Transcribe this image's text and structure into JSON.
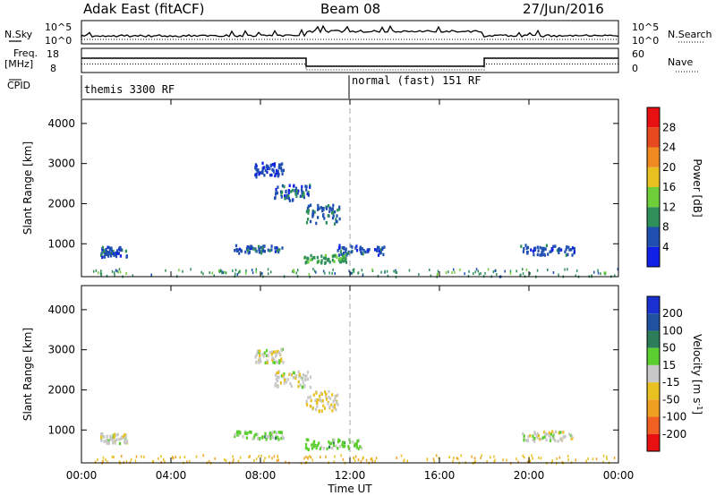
{
  "header": {
    "station": "Adak East (fitACF)",
    "beam": "Beam 08",
    "date": "27/Jun/2016"
  },
  "strip_labels": {
    "nsky": "N.Sky",
    "nsky_ticks": [
      "10^5",
      "10^0"
    ],
    "nsearch": "N.Search",
    "nsearch_ticks": [
      "10^5",
      "10^0"
    ],
    "freq_line1": "Freq.",
    "freq_line2": "[MHz]",
    "freq_ticks": [
      "18",
      "8"
    ],
    "nave": "Nave",
    "nave_ticks": [
      "60",
      "0"
    ],
    "cpid": "CPID",
    "cpid_modes": [
      "themis 3300 RF",
      "normal (fast) 151 RF"
    ]
  },
  "axes": {
    "ylabel": "Slant Range [km]",
    "xlabel": "Time UT",
    "y_ticks": [
      "1000",
      "2000",
      "3000",
      "4000"
    ],
    "x_ticks": [
      "00:00",
      "04:00",
      "08:00",
      "12:00",
      "16:00",
      "20:00",
      "00:00"
    ]
  },
  "colorbars": {
    "power": {
      "label": "Power [dB]",
      "ticks": [
        "4",
        "8",
        "12",
        "16",
        "20",
        "24",
        "28"
      ],
      "colors": [
        "#1020e6",
        "#1f4fb0",
        "#2f8f5a",
        "#6fcf3a",
        "#e8c020",
        "#f08a20",
        "#e84a20",
        "#e81010"
      ]
    },
    "velocity": {
      "label": "Velocity [m s",
      "label_exp": "-1",
      "label_end": "]",
      "ticks": [
        "200",
        "100",
        "50",
        "15",
        "-15",
        "-50",
        "-100",
        "-200"
      ],
      "colors": [
        "#1a30d0",
        "#2050a0",
        "#2e7d5a",
        "#5ccf30",
        "#c8c8c8",
        "#e8c020",
        "#f0a020",
        "#f06020",
        "#e81010"
      ]
    }
  },
  "chart_data": [
    {
      "type": "scatter",
      "title": "Power",
      "x_unit": "hours UT",
      "ylabel": "Slant Range [km]",
      "xlim": [
        0,
        24
      ],
      "ylim": [
        180,
        4600
      ],
      "clusters": [
        {
          "x": [
            0.8,
            2.0
          ],
          "y": [
            700,
            950
          ],
          "value_dB": 6
        },
        {
          "x": [
            7.7,
            9.0
          ],
          "y": [
            2700,
            3050
          ],
          "value_dB": 5
        },
        {
          "x": [
            8.6,
            10.2
          ],
          "y": [
            2100,
            2500
          ],
          "value_dB": 6
        },
        {
          "x": [
            10.0,
            11.5
          ],
          "y": [
            1500,
            2000
          ],
          "value_dB": 7
        },
        {
          "x": [
            6.8,
            9.0
          ],
          "y": [
            800,
            1000
          ],
          "value_dB": 6
        },
        {
          "x": [
            9.9,
            11.8
          ],
          "y": [
            550,
            750
          ],
          "value_dB": 12
        },
        {
          "x": [
            11.4,
            13.5
          ],
          "y": [
            750,
            1000
          ],
          "value_dB": 6
        },
        {
          "x": [
            19.6,
            22.0
          ],
          "y": [
            750,
            1000
          ],
          "value_dB": 6
        },
        {
          "x": [
            0.5,
            24.0
          ],
          "y": [
            200,
            400
          ],
          "value_dB": 10
        }
      ]
    },
    {
      "type": "scatter",
      "title": "Velocity",
      "x_unit": "hours UT",
      "ylabel": "Slant Range [km]",
      "xlim": [
        0,
        24
      ],
      "ylim": [
        180,
        4600
      ],
      "clusters": [
        {
          "x": [
            0.8,
            2.0
          ],
          "y": [
            700,
            950
          ],
          "value_ms": 0
        },
        {
          "x": [
            7.7,
            9.0
          ],
          "y": [
            2700,
            3050
          ],
          "value_ms": 0
        },
        {
          "x": [
            8.6,
            10.2
          ],
          "y": [
            2100,
            2500
          ],
          "value_ms": 0
        },
        {
          "x": [
            10.0,
            11.5
          ],
          "y": [
            1500,
            2000
          ],
          "value_ms": -20
        },
        {
          "x": [
            6.8,
            9.0
          ],
          "y": [
            800,
            1000
          ],
          "value_ms": 30
        },
        {
          "x": [
            9.9,
            12.5
          ],
          "y": [
            550,
            800
          ],
          "value_ms": 30
        },
        {
          "x": [
            19.6,
            22.0
          ],
          "y": [
            750,
            1000
          ],
          "value_ms": 0
        },
        {
          "x": [
            0.5,
            24.0
          ],
          "y": [
            200,
            400
          ],
          "value_ms": -40
        }
      ]
    }
  ]
}
